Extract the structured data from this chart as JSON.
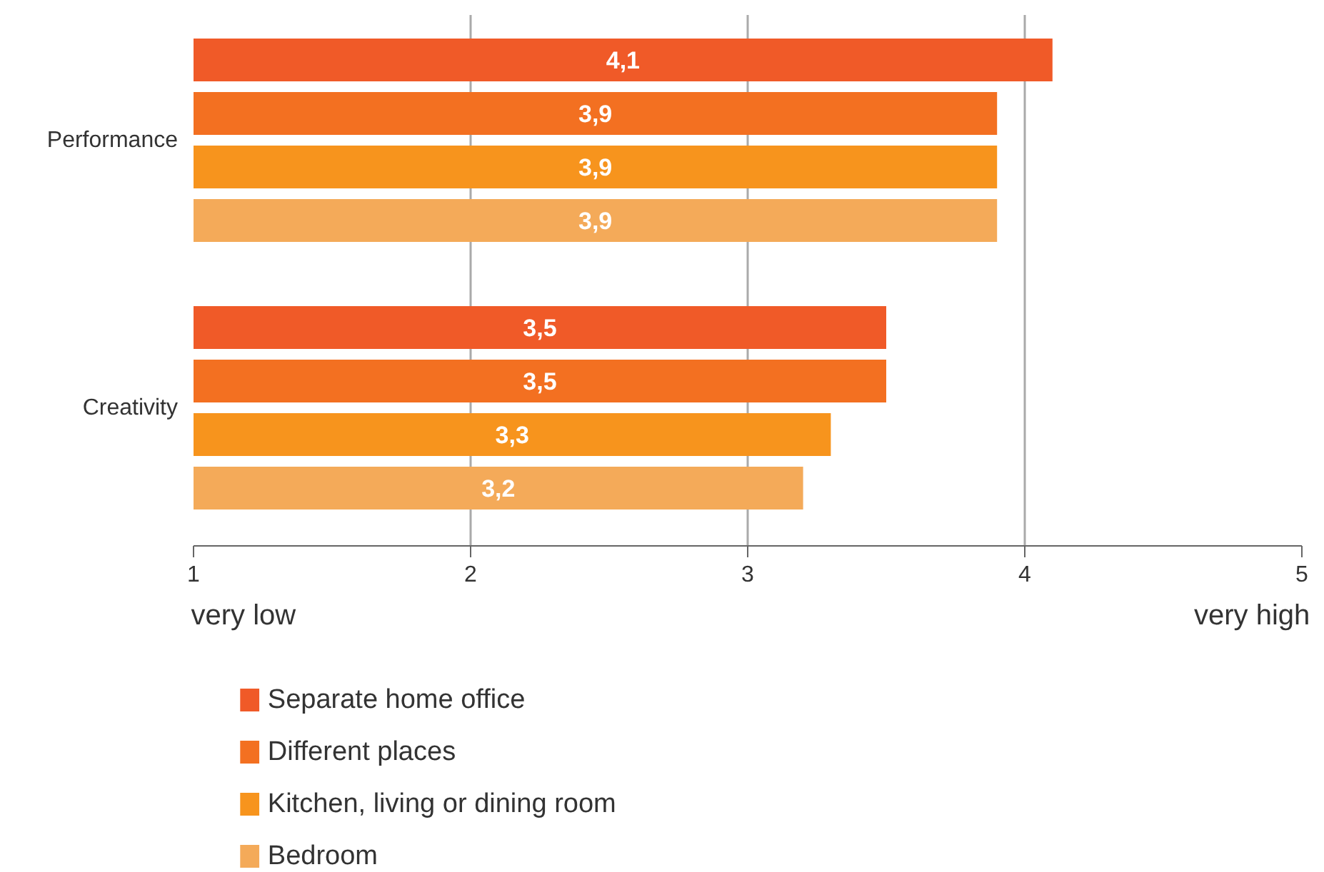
{
  "chart_data": {
    "type": "bar",
    "orientation": "horizontal",
    "categories": [
      "Performance",
      "Creativity"
    ],
    "series": [
      {
        "name": "Separate home office",
        "color": "#f05a28",
        "values": [
          4.1,
          3.5
        ],
        "value_labels": [
          "4,1",
          "3,5"
        ]
      },
      {
        "name": "Different places",
        "color": "#f37021",
        "values": [
          3.9,
          3.5
        ],
        "value_labels": [
          "3,9",
          "3,5"
        ]
      },
      {
        "name": "Kitchen, living or dining room",
        "color": "#f7941d",
        "values": [
          3.9,
          3.3
        ],
        "value_labels": [
          "3,9",
          "3,3"
        ]
      },
      {
        "name": "Bedroom",
        "color": "#f4aa59",
        "values": [
          3.9,
          3.2
        ],
        "value_labels": [
          "3,9",
          "3,2"
        ]
      }
    ],
    "xlim": [
      1,
      5
    ],
    "xticks": [
      1,
      2,
      3,
      4,
      5
    ],
    "grid": "x",
    "legend": "bottom left",
    "annotations": [
      "very low",
      "very high"
    ]
  }
}
